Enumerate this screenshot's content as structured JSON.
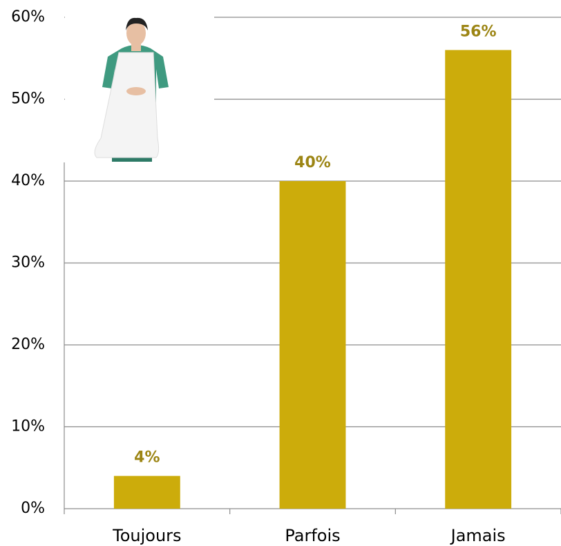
{
  "chart_data": {
    "type": "bar",
    "categories": [
      "Toujours",
      "Parfois",
      "Jamais"
    ],
    "values": [
      4,
      40,
      56
    ],
    "value_labels": [
      "4%",
      "40%",
      "56%"
    ],
    "color": "#ccac0b",
    "ylim": [
      0,
      60
    ],
    "yticks": [
      {
        "value": 0,
        "label": "0%"
      },
      {
        "value": 10,
        "label": "10%"
      },
      {
        "value": 20,
        "label": "20%"
      },
      {
        "value": 30,
        "label": "30%"
      },
      {
        "value": 40,
        "label": "40%"
      },
      {
        "value": 50,
        "label": "50%"
      },
      {
        "value": 60,
        "label": "60%"
      }
    ],
    "grid": true
  }
}
